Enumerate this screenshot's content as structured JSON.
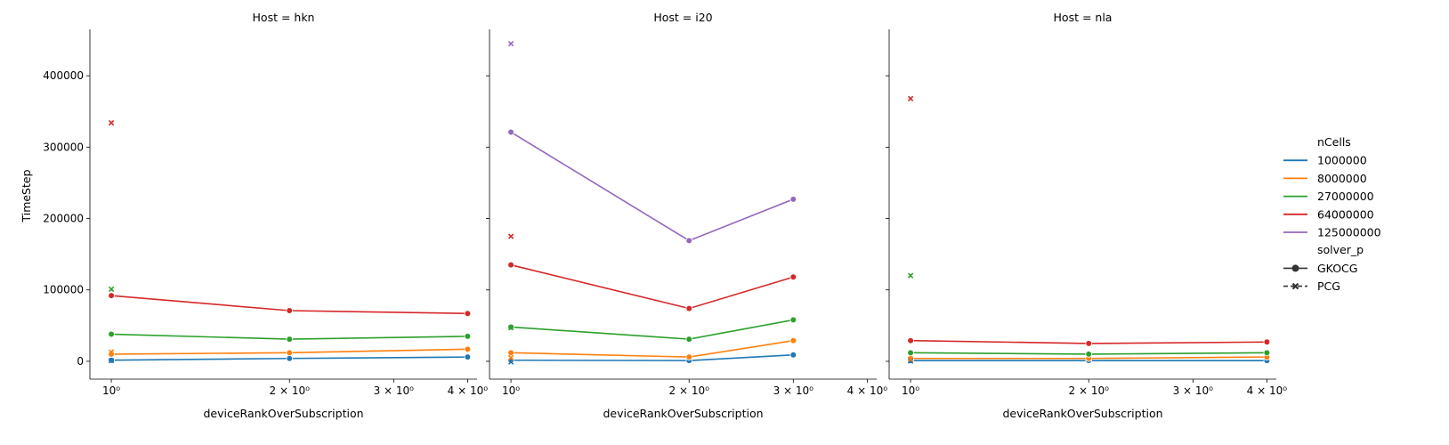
{
  "chart_data": {
    "type": "line",
    "facet_label": "Host",
    "xlabel": "deviceRankOverSubscription",
    "ylabel": "TimeStep",
    "x_scale": "log",
    "x_ticks": [
      1,
      2,
      3,
      4
    ],
    "x_tick_labels": [
      "10⁰",
      "2 × 10⁰",
      "3 × 10⁰",
      "4 × 10⁰"
    ],
    "ylim": [
      -25000,
      465000
    ],
    "y_ticks": [
      0,
      100000,
      200000,
      300000,
      400000
    ],
    "y_tick_labels": [
      "0",
      "100000",
      "200000",
      "300000",
      "400000"
    ],
    "legend": {
      "placement": "right",
      "hue_title": "nCells",
      "style_title": "solver_p",
      "styles": [
        {
          "name": "GKOCG",
          "marker": "circle",
          "dash": "solid"
        },
        {
          "name": "PCG",
          "marker": "x",
          "dash": "dashed"
        }
      ]
    },
    "hue": [
      {
        "name": "1000000",
        "color": "#1f77b4"
      },
      {
        "name": "8000000",
        "color": "#ff7f0e"
      },
      {
        "name": "27000000",
        "color": "#2ca02c"
      },
      {
        "name": "64000000",
        "color": "#d62728"
      },
      {
        "name": "125000000",
        "color": "#9467bd"
      }
    ],
    "panels": [
      {
        "host": "hkn",
        "title": "Host = hkn",
        "xlim": [
          0.92,
          4.15
        ],
        "series": [
          {
            "nCells": "1000000",
            "solver": "GKOCG",
            "x": [
              1,
              2,
              4
            ],
            "y": [
              1500,
              4000,
              6000
            ]
          },
          {
            "nCells": "8000000",
            "solver": "GKOCG",
            "x": [
              1,
              2,
              4
            ],
            "y": [
              10000,
              12000,
              17000
            ]
          },
          {
            "nCells": "27000000",
            "solver": "GKOCG",
            "x": [
              1,
              2,
              4
            ],
            "y": [
              38000,
              31000,
              35000
            ]
          },
          {
            "nCells": "64000000",
            "solver": "GKOCG",
            "x": [
              1,
              2,
              4
            ],
            "y": [
              92000,
              71000,
              67000
            ]
          },
          {
            "nCells": "1000000",
            "solver": "PCG",
            "x": [
              1
            ],
            "y": [
              1000
            ]
          },
          {
            "nCells": "8000000",
            "solver": "PCG",
            "x": [
              1
            ],
            "y": [
              13000
            ]
          },
          {
            "nCells": "27000000",
            "solver": "PCG",
            "x": [
              1
            ],
            "y": [
              101000
            ]
          },
          {
            "nCells": "64000000",
            "solver": "PCG",
            "x": [
              1
            ],
            "y": [
              334000
            ]
          }
        ]
      },
      {
        "host": "i20",
        "title": "Host = i20",
        "xlim": [
          0.92,
          4.15
        ],
        "series": [
          {
            "nCells": "1000000",
            "solver": "GKOCG",
            "x": [
              1,
              2,
              3
            ],
            "y": [
              1500,
              1000,
              9000
            ]
          },
          {
            "nCells": "8000000",
            "solver": "GKOCG",
            "x": [
              1,
              2,
              3
            ],
            "y": [
              12000,
              6000,
              29000
            ]
          },
          {
            "nCells": "27000000",
            "solver": "GKOCG",
            "x": [
              1,
              2,
              3
            ],
            "y": [
              48000,
              31000,
              58000
            ]
          },
          {
            "nCells": "64000000",
            "solver": "GKOCG",
            "x": [
              1,
              2,
              3
            ],
            "y": [
              135000,
              74000,
              118000
            ]
          },
          {
            "nCells": "125000000",
            "solver": "GKOCG",
            "x": [
              1,
              2,
              3
            ],
            "y": [
              321000,
              169000,
              227000
            ]
          },
          {
            "nCells": "1000000",
            "solver": "PCG",
            "x": [
              1
            ],
            "y": [
              -1000
            ]
          },
          {
            "nCells": "8000000",
            "solver": "PCG",
            "x": [
              1
            ],
            "y": [
              5000
            ]
          },
          {
            "nCells": "27000000",
            "solver": "PCG",
            "x": [
              1
            ],
            "y": [
              47000
            ]
          },
          {
            "nCells": "64000000",
            "solver": "PCG",
            "x": [
              1
            ],
            "y": [
              175000
            ]
          },
          {
            "nCells": "125000000",
            "solver": "PCG",
            "x": [
              1
            ],
            "y": [
              445000
            ]
          }
        ]
      },
      {
        "host": "nla",
        "title": "Host = nla",
        "xlim": [
          0.92,
          4.15
        ],
        "series": [
          {
            "nCells": "1000000",
            "solver": "GKOCG",
            "x": [
              1,
              2,
              4
            ],
            "y": [
              1000,
              1000,
              1000
            ]
          },
          {
            "nCells": "8000000",
            "solver": "GKOCG",
            "x": [
              1,
              2,
              4
            ],
            "y": [
              4000,
              4000,
              6000
            ]
          },
          {
            "nCells": "27000000",
            "solver": "GKOCG",
            "x": [
              1,
              2,
              4
            ],
            "y": [
              12000,
              10000,
              12000
            ]
          },
          {
            "nCells": "64000000",
            "solver": "GKOCG",
            "x": [
              1,
              2,
              4
            ],
            "y": [
              29000,
              25000,
              27000
            ]
          },
          {
            "nCells": "1000000",
            "solver": "PCG",
            "x": [
              1
            ],
            "y": [
              500
            ]
          },
          {
            "nCells": "8000000",
            "solver": "PCG",
            "x": [
              1
            ],
            "y": [
              3000
            ]
          },
          {
            "nCells": "27000000",
            "solver": "PCG",
            "x": [
              1
            ],
            "y": [
              120000
            ]
          },
          {
            "nCells": "64000000",
            "solver": "PCG",
            "x": [
              1
            ],
            "y": [
              368000
            ]
          }
        ]
      }
    ]
  }
}
